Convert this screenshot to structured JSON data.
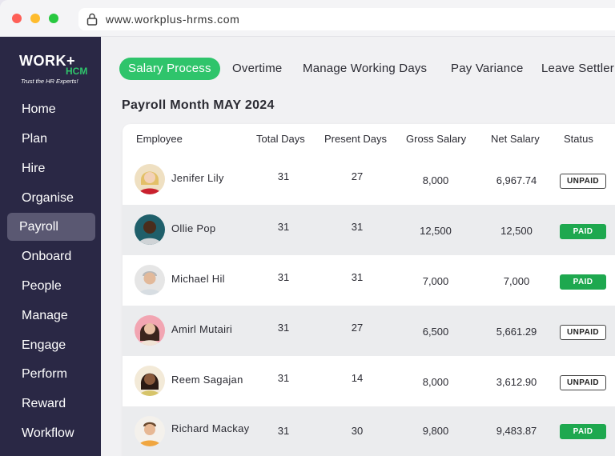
{
  "browser": {
    "url": "www.workplus-hrms.com"
  },
  "logo": {
    "main": "WORK+",
    "sub": "HCM",
    "tagline": "Trust the HR Experts!"
  },
  "sidebar": {
    "items": [
      {
        "label": "Home"
      },
      {
        "label": "Plan"
      },
      {
        "label": "Hire"
      },
      {
        "label": "Organise"
      },
      {
        "label": "Payroll",
        "active": true
      },
      {
        "label": "Onboard"
      },
      {
        "label": "People"
      },
      {
        "label": "Manage"
      },
      {
        "label": "Engage"
      },
      {
        "label": "Perform"
      },
      {
        "label": "Reward"
      },
      {
        "label": "Workflow"
      }
    ]
  },
  "tabs": [
    {
      "label": "Salary Process",
      "active": true
    },
    {
      "label": "Overtime"
    },
    {
      "label": "Manage Working Days"
    },
    {
      "label": "Pay Variance"
    },
    {
      "label": "Leave Settler"
    }
  ],
  "page": {
    "title": "Payroll Month MAY 2024"
  },
  "table": {
    "headers": [
      "Employee",
      "Total Days",
      "Present Days",
      "Gross Salary",
      "Net Salary",
      "Status"
    ],
    "rows": [
      {
        "name": "Jenifer Lily",
        "total": "31",
        "present": "27",
        "gross": "8,000",
        "net": "6,967.74",
        "status": "UNPAID"
      },
      {
        "name": "Ollie  Pop",
        "total": "31",
        "present": "31",
        "gross": "12,500",
        "net": "12,500",
        "status": "PAID"
      },
      {
        "name": "Michael Hil",
        "total": "31",
        "present": "31",
        "gross": "7,000",
        "net": "7,000",
        "status": "PAID"
      },
      {
        "name": "Amirl Mutairi",
        "total": "31",
        "present": "27",
        "gross": "6,500",
        "net": "5,661.29",
        "status": "UNPAID"
      },
      {
        "name": "Reem Sagajan",
        "total": "31",
        "present": "14",
        "gross": "8,000",
        "net": "3,612.90",
        "status": "UNPAID"
      },
      {
        "name": "Richard Mackay",
        "total": "31",
        "present": "30",
        "gross": "9,800",
        "net": "9,483.87",
        "status": "PAID"
      }
    ]
  },
  "colors": {
    "accent": "#2fc46b",
    "sidebar": "#2a2845",
    "paid": "#1ea84f"
  }
}
